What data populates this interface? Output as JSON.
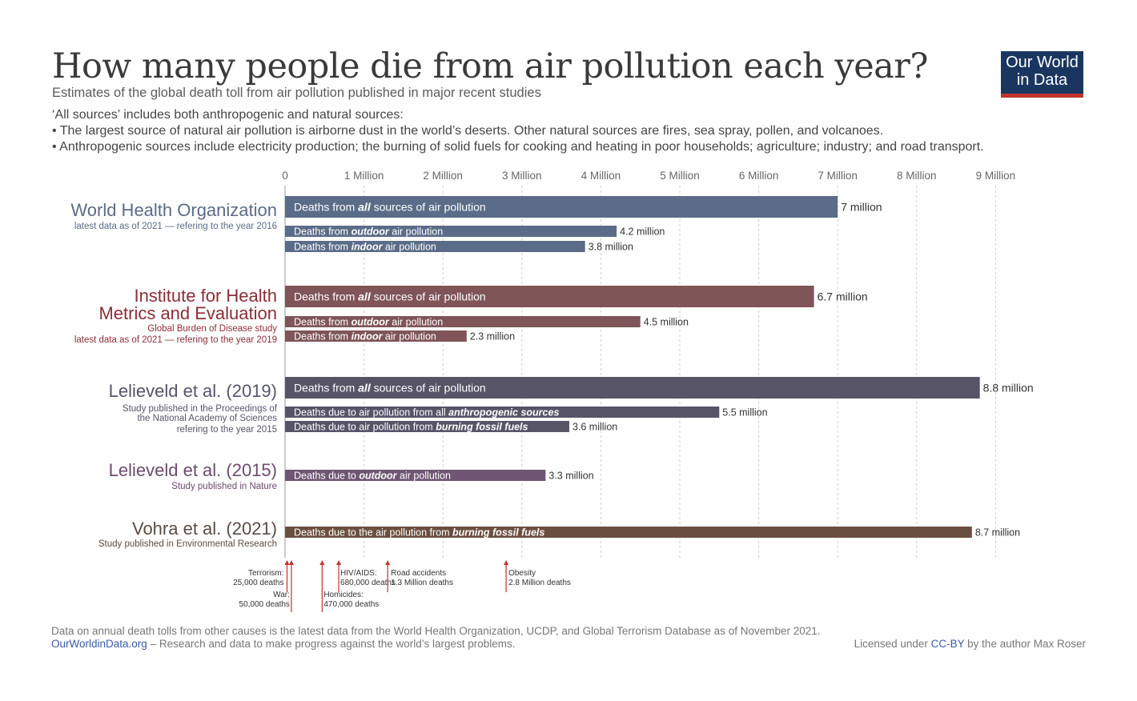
{
  "header": {
    "title": "How many people die from air pollution each year?",
    "subtitle": "Estimates of the global death toll from air pollution published in major recent studies",
    "notes": [
      "‘All sources’ includes both anthropogenic and natural sources:",
      "• The largest source of natural air pollution is airborne dust in the world’s deserts. Other natural sources are fires, sea spray, pollen, and volcanoes.",
      "• Anthropogenic sources include electricity production; the burning of solid fuels for cooking and heating in poor households; agriculture; industry; and road transport."
    ]
  },
  "logo": {
    "line1": "Our World",
    "line2": "in Data",
    "bg": "#1a3660",
    "accent": "#c3322b"
  },
  "chart_data": {
    "type": "bar",
    "orientation": "horizontal",
    "xlim": [
      0,
      9000000
    ],
    "tick_values": [
      0,
      1000000,
      2000000,
      3000000,
      4000000,
      5000000,
      6000000,
      7000000,
      8000000,
      9000000
    ],
    "tick_labels": [
      "0",
      "1 Million",
      "2 Million",
      "3 Million",
      "4 Million",
      "5 Million",
      "6 Million",
      "7 Million",
      "8 Million",
      "9 Million"
    ],
    "grid": "vertical dotted",
    "groups": [
      {
        "name": "World Health Organization",
        "sublines": [
          "latest data as of 2021 — refering to the year 2016"
        ],
        "color": "#5b6c88",
        "bars": [
          {
            "pre": "Deaths from ",
            "em": "all",
            "post": " sources of air pollution",
            "value": 7000000,
            "value_label": "7 million",
            "size": "large"
          },
          {
            "pre": "Deaths from ",
            "em": "outdoor",
            "post": " air pollution",
            "value": 4200000,
            "value_label": "4.2 million",
            "size": "small"
          },
          {
            "pre": "Deaths from ",
            "em": "indoor",
            "post": " air pollution",
            "value": 3800000,
            "value_label": "3.8 million",
            "size": "small"
          }
        ]
      },
      {
        "name": "Institute for Health\nMetrics and Evaluation",
        "sublines": [
          "Global Burden of Disease study",
          "latest data as of 2021 — refering to the year 2019"
        ],
        "color": "#8a2e36",
        "bar_color": "#7f5558",
        "bars": [
          {
            "pre": "Deaths from ",
            "em": "all",
            "post": " sources of air pollution",
            "value": 6700000,
            "value_label": "6.7 million",
            "size": "large"
          },
          {
            "pre": "Deaths from ",
            "em": "outdoor",
            "post": " air pollution",
            "value": 4500000,
            "value_label": "4.5 million",
            "size": "small"
          },
          {
            "pre": "Deaths from ",
            "em": "indoor",
            "post": " air pollution",
            "value": 2300000,
            "value_label": "2.3 million",
            "size": "small"
          }
        ]
      },
      {
        "name": "Lelieveld et al. (2019)",
        "sublines": [
          "Study published in the Proceedings of",
          "the National Academy of Sciences",
          "refering to the year 2015"
        ],
        "color": "#55556a",
        "bar_color": "#575468",
        "bars": [
          {
            "pre": "Deaths from ",
            "em": "all",
            "post": " sources of air pollution",
            "value": 8800000,
            "value_label": "8.8 million",
            "size": "large"
          },
          {
            "pre": "Deaths due to air pollution from all ",
            "em": "anthropogenic sources",
            "post": "",
            "value": 5500000,
            "value_label": "5.5 million",
            "size": "small"
          },
          {
            "pre": "Deaths due to air pollution from ",
            "em": "burning fossil fuels",
            "post": "",
            "value": 3600000,
            "value_label": "3.6 million",
            "size": "small"
          }
        ]
      },
      {
        "name": "Lelieveld et al. (2015)",
        "sublines": [
          "Study published in Nature"
        ],
        "color": "#6d4a6e",
        "bar_color": "#6f5673",
        "bars": [
          {
            "pre": "Deaths due to ",
            "em": "outdoor",
            "post": " air pollution",
            "value": 3300000,
            "value_label": "3.3 million",
            "size": "medium"
          }
        ]
      },
      {
        "name": "Vohra et al. (2021)",
        "sublines": [
          "Study published in Environmental Research"
        ],
        "color": "#5a4c42",
        "bar_color": "#6a4f40",
        "bars": [
          {
            "pre": "Deaths due to the air pollution from ",
            "em": "burning fossil fuels",
            "post": "",
            "value": 8700000,
            "value_label": "8.7 million",
            "size": "small"
          }
        ]
      }
    ],
    "comparisons": [
      {
        "label": "Terrorism:",
        "value_text": "25,000 deaths",
        "value": 25000
      },
      {
        "label": "War:",
        "value_text": "50,000 deaths",
        "value": 50000
      },
      {
        "label": "Homicides:",
        "value_text": "470,000 deaths",
        "value": 470000
      },
      {
        "label": "HIV/AIDS:",
        "value_text": "680,000 deaths",
        "value": 680000
      },
      {
        "label": "Road accidents",
        "value_text": "1.3 Million deaths",
        "value": 1300000
      },
      {
        "label": "Obesity",
        "value_text": "2.8 Million deaths",
        "value": 2800000
      }
    ],
    "comparison_color": "#c3322b"
  },
  "footer": {
    "source": "Data on annual death tolls from other causes is the latest data from the World Health Organization, UCDP, and Global Terrorism Database as of November 2021.",
    "site": "OurWorldinData.org",
    "tagline": " – Research and data to make progress against the world’s largest problems.",
    "license_pre": "Licensed under ",
    "license": "CC-BY",
    "license_post": " by the author Max Roser"
  }
}
